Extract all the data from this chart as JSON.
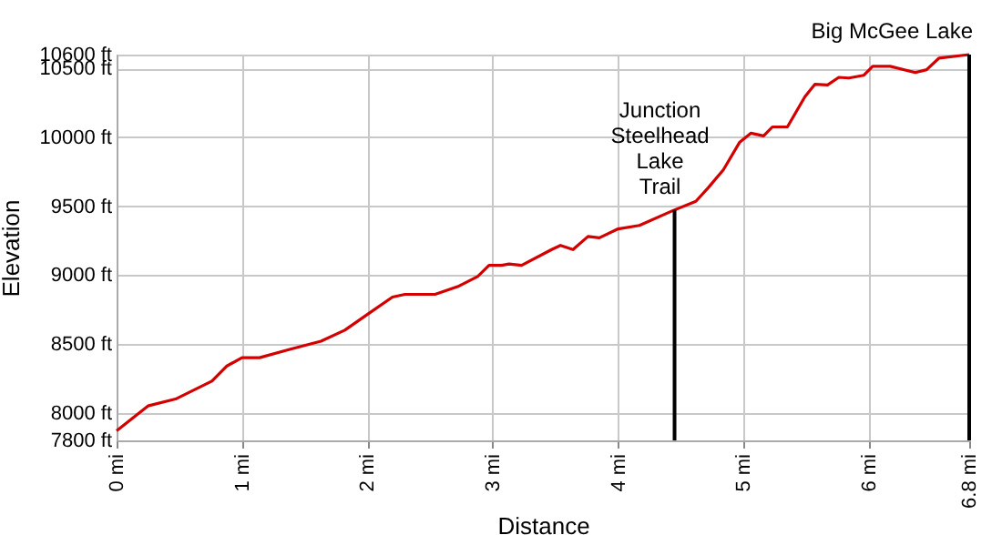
{
  "chart_data": {
    "type": "line",
    "xlabel": "Distance",
    "ylabel": "Elevation",
    "x": [
      0,
      0.25,
      0.47,
      0.76,
      0.88,
      1.0,
      1.14,
      1.38,
      1.63,
      1.82,
      2.01,
      2.2,
      2.3,
      2.54,
      2.73,
      2.88,
      2.97,
      3.07,
      3.13,
      3.23,
      3.47,
      3.54,
      3.64,
      3.76,
      3.85,
      4.0,
      4.17,
      4.43,
      4.62,
      4.72,
      4.84,
      4.97,
      5.06,
      5.16,
      5.23,
      5.35,
      5.49,
      5.57,
      5.67,
      5.76,
      5.84,
      5.96,
      6.03,
      6.17,
      6.37,
      6.46,
      6.56,
      6.8
    ],
    "series": [
      {
        "color": "#d40000",
        "values": [
          7870,
          8050,
          8100,
          8230,
          8340,
          8400,
          8400,
          8460,
          8520,
          8600,
          8720,
          8840,
          8860,
          8860,
          8920,
          8990,
          9070,
          9070,
          9080,
          9070,
          9185,
          9215,
          9185,
          9280,
          9270,
          9335,
          9360,
          9465,
          9535,
          9635,
          9765,
          9965,
          10030,
          10010,
          10075,
          10075,
          10295,
          10385,
          10380,
          10435,
          10430,
          10450,
          10515,
          10515,
          10470,
          10490,
          10575,
          10600
        ]
      }
    ],
    "xlim": [
      0,
      6.8
    ],
    "ylim": [
      7800,
      10600
    ],
    "xticks": [
      {
        "value": 0,
        "label": "0 mi"
      },
      {
        "value": 1,
        "label": "1 mi"
      },
      {
        "value": 2,
        "label": "2 mi"
      },
      {
        "value": 3,
        "label": "3 mi"
      },
      {
        "value": 4,
        "label": "4 mi"
      },
      {
        "value": 5,
        "label": "5 mi"
      },
      {
        "value": 6,
        "label": "6 mi"
      },
      {
        "value": 6.8,
        "label": "6.8 mi"
      }
    ],
    "yticks": [
      {
        "value": 7800,
        "label": "7800 ft"
      },
      {
        "value": 8000,
        "label": "8000 ft"
      },
      {
        "value": 8500,
        "label": "8500 ft"
      },
      {
        "value": 9000,
        "label": "9000 ft"
      },
      {
        "value": 9500,
        "label": "9500 ft"
      },
      {
        "value": 10000,
        "label": "10000 ft"
      },
      {
        "value": 10500,
        "label": "10500 ft"
      },
      {
        "value": 10600,
        "label": "10600 ft"
      }
    ],
    "grid": true,
    "ref_lines": [
      {
        "axis": "x",
        "value": 4.45,
        "label": "Junction\nSteelhead\nLake\nTrail",
        "color": "#000000"
      },
      {
        "axis": "x",
        "value": 6.8,
        "label": "Big McGee Lake",
        "color": "#000000"
      }
    ]
  }
}
